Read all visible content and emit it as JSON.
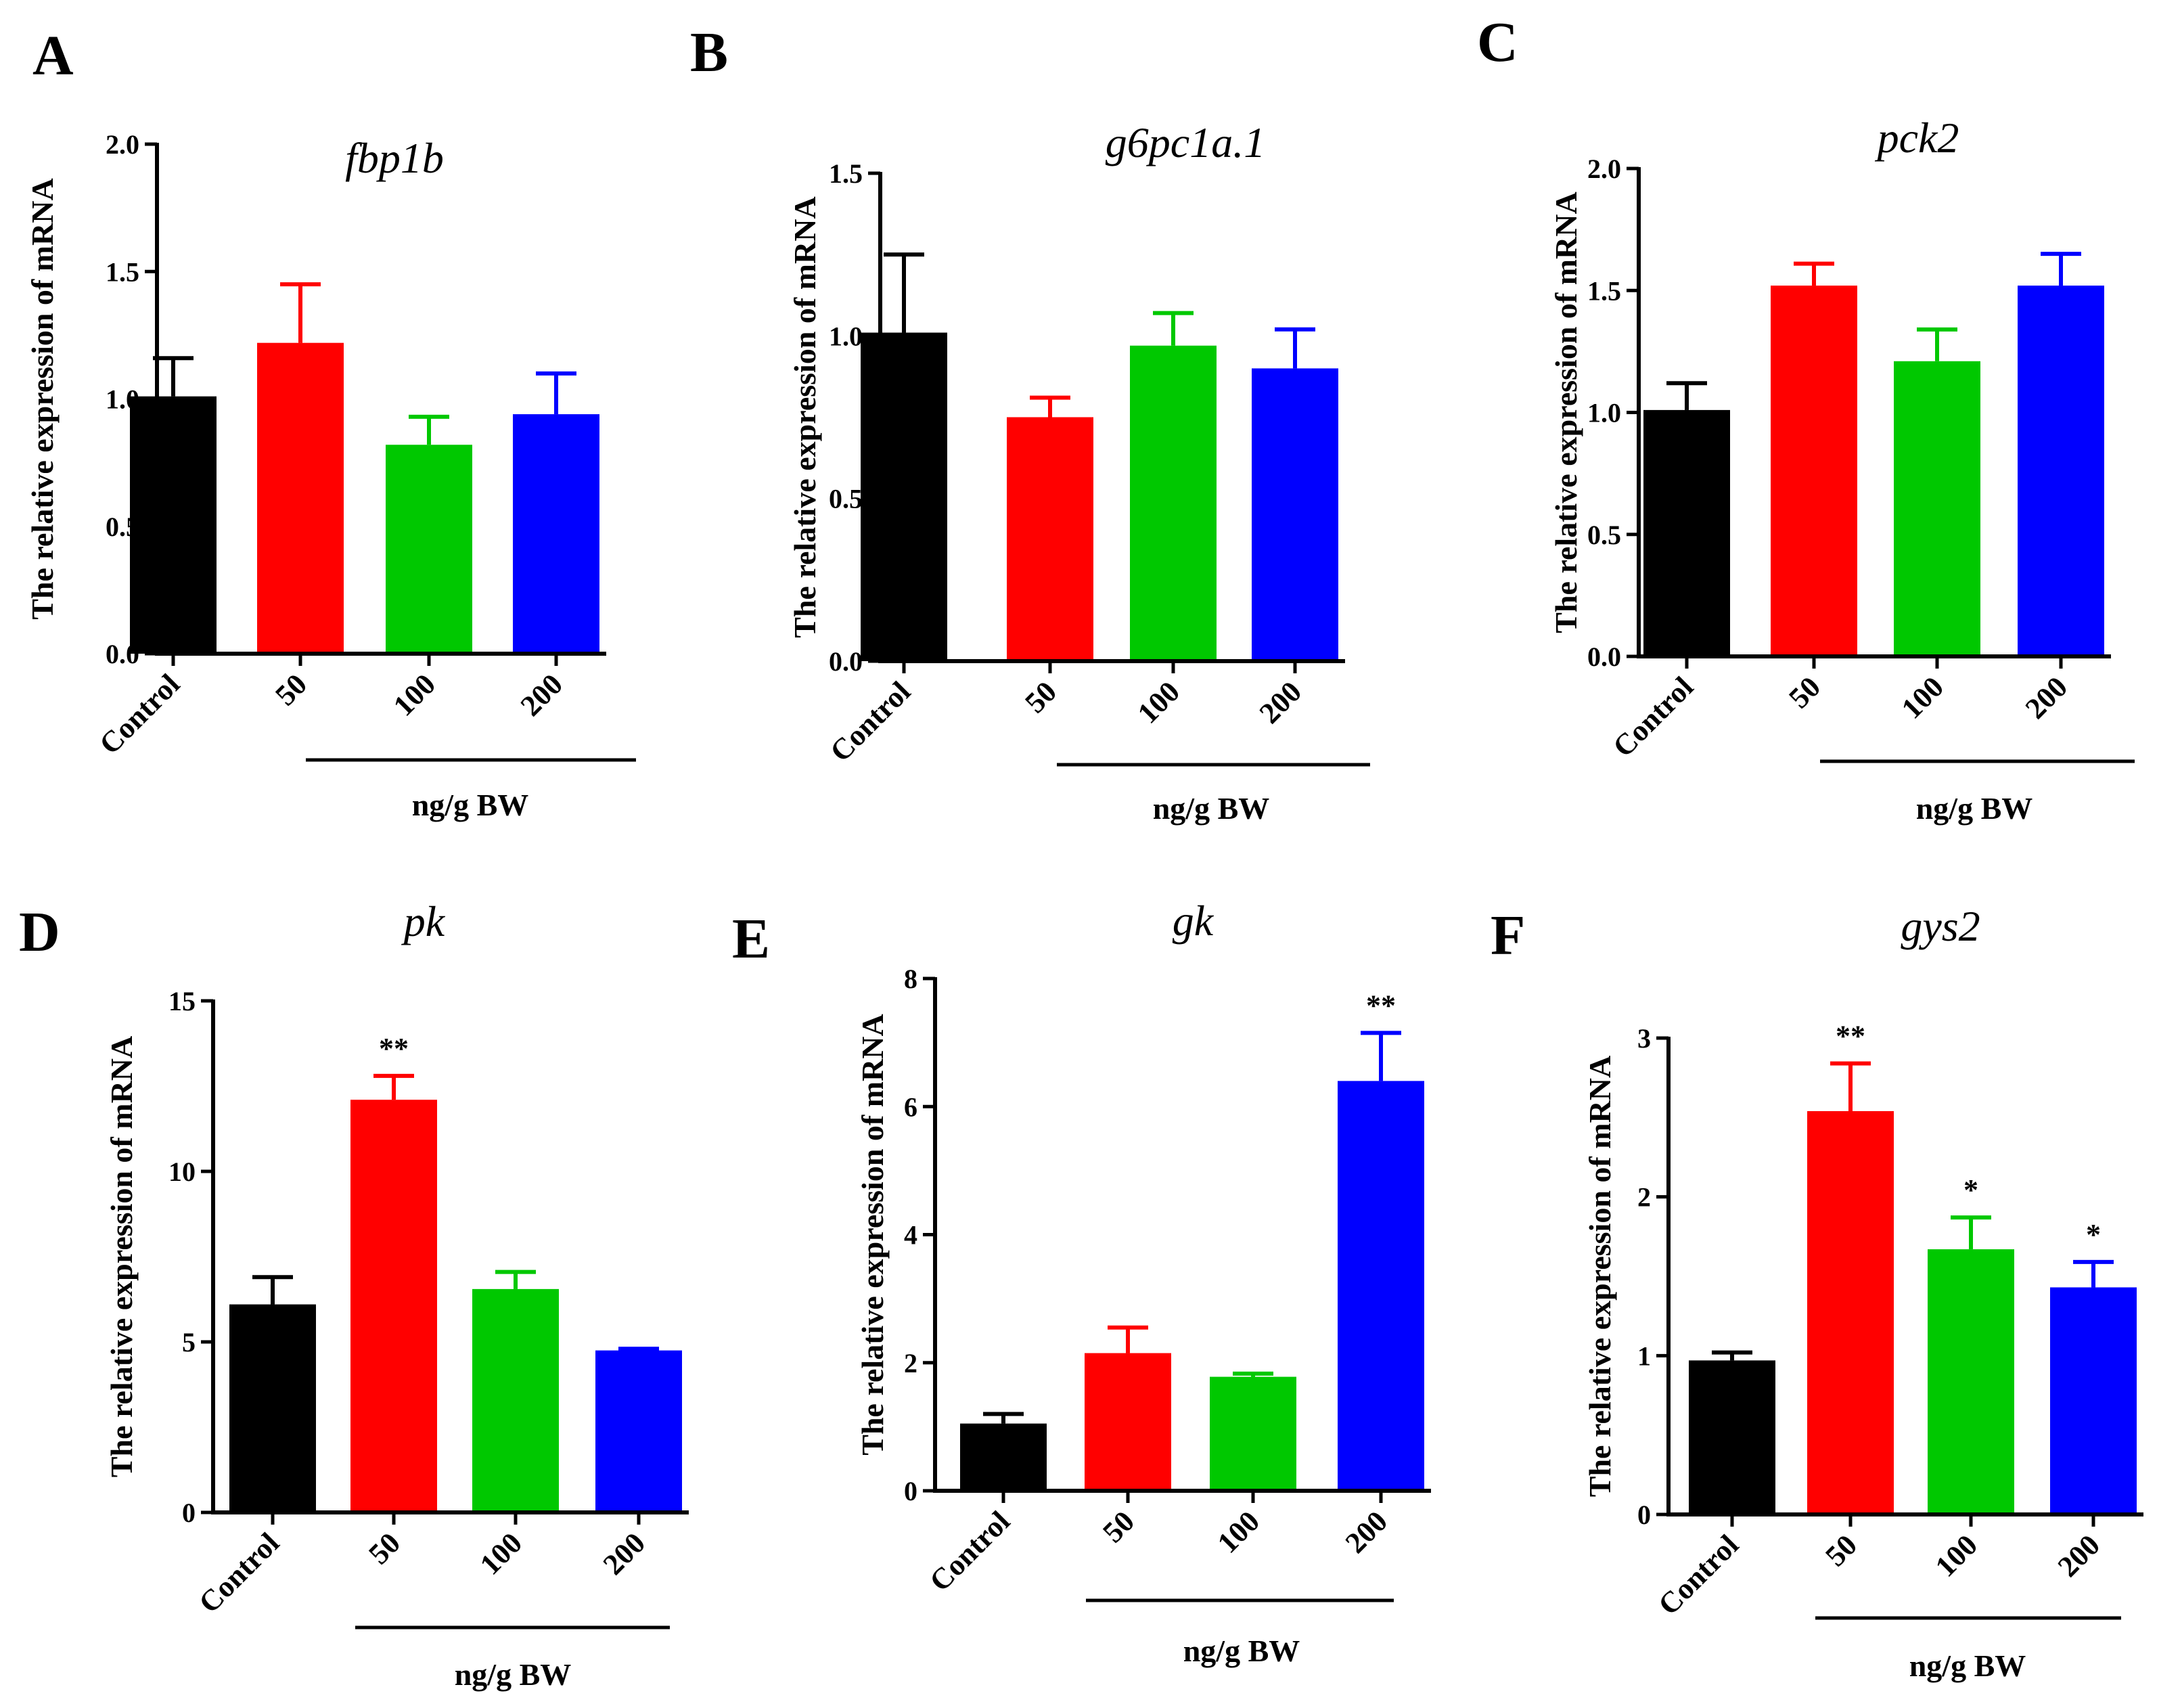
{
  "figure": {
    "colors": {
      "Control": "#000000",
      "50": "#ff0000",
      "100": "#00c800",
      "200": "#0000ff"
    }
  },
  "chart_data": [
    {
      "panel": "A",
      "type": "bar",
      "title": "fbp1b",
      "ylabel": "The relative expression of mRNA",
      "xlabel": "ng/g BW",
      "categories": [
        "Control",
        "50",
        "100",
        "200"
      ],
      "values": [
        1.01,
        1.22,
        0.82,
        0.94
      ],
      "errors": [
        0.15,
        0.23,
        0.11,
        0.16
      ],
      "significance": [
        "",
        "",
        "",
        ""
      ],
      "ylim": [
        0,
        2.0
      ],
      "ticks": [
        0.0,
        0.5,
        1.0,
        1.5,
        2.0
      ],
      "tick_labels": [
        "0.0",
        "0.5",
        "1.0",
        "1.5",
        "2.0"
      ]
    },
    {
      "panel": "B",
      "type": "bar",
      "title": "g6pc1a.1",
      "ylabel": "The relative expression of mRNA",
      "xlabel": "ng/g BW",
      "categories": [
        "Control",
        "50",
        "100",
        "200"
      ],
      "values": [
        1.01,
        0.75,
        0.97,
        0.9
      ],
      "errors": [
        0.24,
        0.06,
        0.1,
        0.12
      ],
      "significance": [
        "",
        "",
        "",
        ""
      ],
      "ylim": [
        0,
        1.5
      ],
      "ticks": [
        0.0,
        0.5,
        1.0,
        1.5
      ],
      "tick_labels": [
        "0.0",
        "0.5",
        "1.0",
        "1.5"
      ]
    },
    {
      "panel": "C",
      "type": "bar",
      "title": "pck2",
      "ylabel": "The relative expression of mRNA",
      "xlabel": "ng/g BW",
      "categories": [
        "Control",
        "50",
        "100",
        "200"
      ],
      "values": [
        1.01,
        1.52,
        1.21,
        1.52
      ],
      "errors": [
        0.11,
        0.09,
        0.13,
        0.13
      ],
      "significance": [
        "",
        "",
        "",
        ""
      ],
      "ylim": [
        0,
        2.0
      ],
      "ticks": [
        0.0,
        0.5,
        1.0,
        1.5,
        2.0
      ],
      "tick_labels": [
        "0.0",
        "0.5",
        "1.0",
        "1.5",
        "2.0"
      ]
    },
    {
      "panel": "D",
      "type": "bar",
      "title": "pk",
      "ylabel": "The relative expression of mRNA",
      "xlabel": "ng/g BW",
      "categories": [
        "Control",
        "50",
        "100",
        "200"
      ],
      "values": [
        6.1,
        12.1,
        6.55,
        4.75
      ],
      "errors": [
        0.8,
        0.7,
        0.5,
        0.05
      ],
      "significance": [
        "",
        "**",
        "",
        ""
      ],
      "ylim": [
        0,
        15
      ],
      "ticks": [
        0,
        5,
        10,
        15
      ],
      "tick_labels": [
        "0",
        "5",
        "10",
        "15"
      ]
    },
    {
      "panel": "E",
      "type": "bar",
      "title": "gk",
      "ylabel": "The relative expression of mRNA",
      "xlabel": "ng/g BW",
      "categories": [
        "Control",
        "50",
        "100",
        "200"
      ],
      "values": [
        1.05,
        2.15,
        1.78,
        6.4
      ],
      "errors": [
        0.15,
        0.4,
        0.05,
        0.75
      ],
      "significance": [
        "",
        "",
        "",
        "**"
      ],
      "ylim": [
        0,
        8
      ],
      "ticks": [
        0,
        2,
        4,
        6,
        8
      ],
      "tick_labels": [
        "0",
        "2",
        "4",
        "6",
        "8"
      ]
    },
    {
      "panel": "F",
      "type": "bar",
      "title": "gys2",
      "ylabel": "The relative expression of mRNA",
      "xlabel": "ng/g BW",
      "categories": [
        "Control",
        "50",
        "100",
        "200"
      ],
      "values": [
        0.97,
        2.54,
        1.67,
        1.43
      ],
      "errors": [
        0.05,
        0.3,
        0.2,
        0.16
      ],
      "significance": [
        "",
        "**",
        "*",
        "*"
      ],
      "ylim": [
        0,
        3
      ],
      "ticks": [
        0,
        1,
        2,
        3
      ],
      "tick_labels": [
        "0",
        "1",
        "2",
        "3"
      ]
    }
  ]
}
